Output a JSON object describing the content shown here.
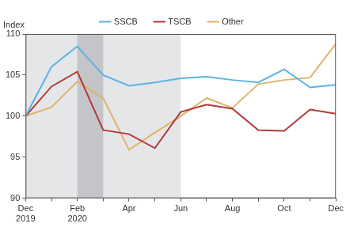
{
  "chart_data": {
    "type": "line",
    "ylabel": "Index",
    "categories": [
      "Dec\n2019",
      null,
      "Feb\n2020",
      null,
      "Apr",
      null,
      "Jun",
      null,
      "Aug",
      null,
      "Oct",
      null,
      "Dec"
    ],
    "series": [
      {
        "name": "SSCB",
        "color": "#5ab4e5",
        "values": [
          100,
          106,
          108.5,
          105,
          103.7,
          104.1,
          104.6,
          104.8,
          104.4,
          104.1,
          105.7,
          103.5,
          103.8
        ]
      },
      {
        "name": "TSCB",
        "color": "#b03a3a",
        "values": [
          100,
          103.6,
          105.4,
          98.3,
          97.8,
          96.1,
          100.5,
          101.4,
          100.9,
          98.3,
          98.2,
          100.8,
          100.3
        ]
      },
      {
        "name": "Other",
        "color": "#e0b36c",
        "values": [
          100,
          101.1,
          104.2,
          102.2,
          95.9,
          98.0,
          100.0,
          102.2,
          101.0,
          103.9,
          104.4,
          104.7,
          108.8
        ]
      }
    ],
    "shaded_ranges": [
      {
        "start": 0,
        "end": 6
      },
      {
        "start": 2,
        "end": 3
      }
    ],
    "ylim": [
      90,
      110
    ],
    "yticks": [
      90,
      95,
      100,
      105,
      110
    ],
    "grid": false,
    "legend": "top"
  }
}
